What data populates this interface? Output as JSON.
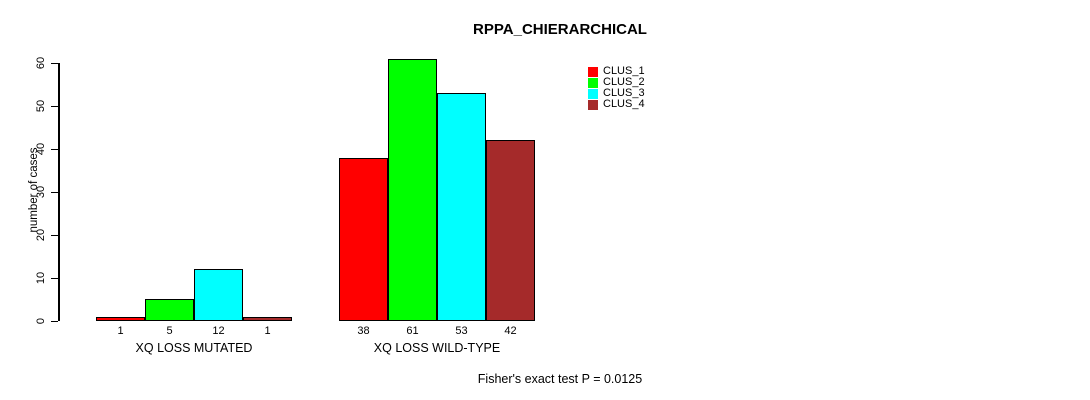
{
  "title": "RPPA_CHIERARCHICAL",
  "annotation": "Fisher's exact test P = 0.0125",
  "chart_data": {
    "type": "bar",
    "grouped": true,
    "title": "RPPA_CHIERARCHICAL",
    "xlabel": "",
    "ylabel": "number of cases",
    "categories": [
      "XQ LOSS MUTATED",
      "XQ LOSS WILD-TYPE"
    ],
    "series": [
      {
        "name": "CLUS_1",
        "color": "#FF0000",
        "values": [
          1,
          38
        ]
      },
      {
        "name": "CLUS_2",
        "color": "#00FF00",
        "values": [
          5,
          61
        ]
      },
      {
        "name": "CLUS_3",
        "color": "#00FFFF",
        "values": [
          12,
          53
        ]
      },
      {
        "name": "CLUS_4",
        "color": "#A52A2A",
        "values": [
          1,
          42
        ]
      }
    ],
    "bar_value_labels": {
      "XQ LOSS MUTATED": [
        1,
        5,
        12,
        1
      ],
      "XQ LOSS WILD-TYPE": [
        38,
        61,
        53,
        42
      ]
    },
    "yticks": [
      0,
      10,
      20,
      30,
      40,
      50,
      60
    ],
    "ylim": [
      0,
      60
    ],
    "grid": false,
    "legend_position": "top-right",
    "footnote": "Fisher's exact test P = 0.0125"
  }
}
